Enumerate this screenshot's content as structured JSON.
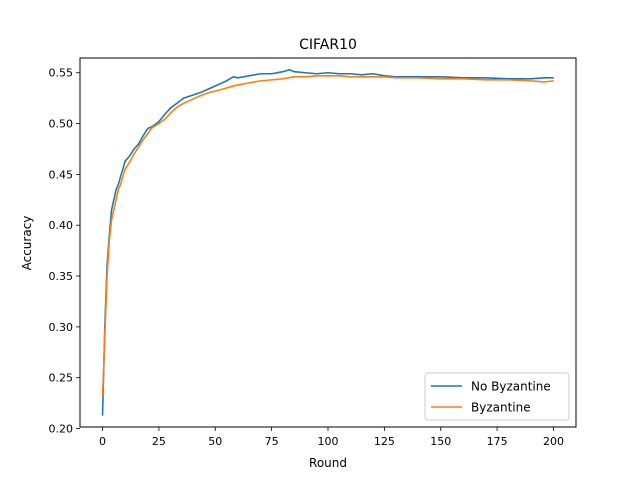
{
  "chart_data": {
    "type": "line",
    "title": "CIFAR10",
    "xlabel": "Round",
    "ylabel": "Accuracy",
    "xlim": [
      -10,
      210
    ],
    "ylim": [
      0.2015,
      0.5645
    ],
    "xticks": [
      0,
      25,
      50,
      75,
      100,
      125,
      150,
      175,
      200
    ],
    "xtick_labels": [
      "0",
      "25",
      "50",
      "75",
      "100",
      "125",
      "150",
      "175",
      "200"
    ],
    "yticks": [
      0.2,
      0.25,
      0.3,
      0.35,
      0.4,
      0.45,
      0.5,
      0.55
    ],
    "ytick_labels": [
      "0.20",
      "0.25",
      "0.30",
      "0.35",
      "0.40",
      "0.45",
      "0.50",
      "0.55"
    ],
    "grid": false,
    "legend_position": "bottom-right",
    "series": [
      {
        "name": "No Byzantine",
        "color": "#1f77b4",
        "x": [
          0,
          1,
          2,
          3,
          4,
          5,
          6,
          7,
          8,
          9,
          10,
          12,
          14,
          16,
          18,
          20,
          22,
          25,
          28,
          30,
          33,
          36,
          40,
          44,
          48,
          52,
          55,
          58,
          60,
          65,
          70,
          75,
          80,
          83,
          85,
          90,
          95,
          100,
          105,
          110,
          115,
          120,
          125,
          130,
          140,
          150,
          160,
          170,
          180,
          190,
          196,
          200
        ],
        "values": [
          0.213,
          0.3,
          0.36,
          0.39,
          0.415,
          0.425,
          0.435,
          0.44,
          0.448,
          0.455,
          0.463,
          0.468,
          0.475,
          0.48,
          0.488,
          0.495,
          0.497,
          0.502,
          0.51,
          0.515,
          0.52,
          0.525,
          0.528,
          0.531,
          0.535,
          0.539,
          0.542,
          0.546,
          0.545,
          0.547,
          0.549,
          0.549,
          0.551,
          0.553,
          0.551,
          0.55,
          0.549,
          0.55,
          0.549,
          0.549,
          0.548,
          0.549,
          0.547,
          0.546,
          0.546,
          0.546,
          0.545,
          0.545,
          0.544,
          0.544,
          0.545,
          0.545
        ]
      },
      {
        "name": "Byzantine",
        "color": "#ff7f0e",
        "x": [
          0,
          1,
          2,
          3,
          4,
          5,
          6,
          7,
          8,
          9,
          10,
          12,
          14,
          16,
          18,
          20,
          22,
          25,
          28,
          30,
          33,
          36,
          40,
          44,
          48,
          52,
          55,
          58,
          60,
          65,
          70,
          75,
          80,
          85,
          90,
          95,
          100,
          105,
          110,
          115,
          120,
          125,
          130,
          140,
          150,
          160,
          170,
          180,
          190,
          196,
          200
        ],
        "values": [
          0.232,
          0.29,
          0.35,
          0.385,
          0.405,
          0.415,
          0.425,
          0.435,
          0.44,
          0.448,
          0.455,
          0.462,
          0.47,
          0.477,
          0.484,
          0.49,
          0.496,
          0.5,
          0.505,
          0.51,
          0.516,
          0.52,
          0.524,
          0.528,
          0.531,
          0.533,
          0.535,
          0.537,
          0.538,
          0.54,
          0.542,
          0.543,
          0.544,
          0.546,
          0.546,
          0.547,
          0.547,
          0.547,
          0.546,
          0.546,
          0.546,
          0.546,
          0.545,
          0.545,
          0.544,
          0.544,
          0.543,
          0.543,
          0.542,
          0.541,
          0.542
        ]
      }
    ]
  }
}
